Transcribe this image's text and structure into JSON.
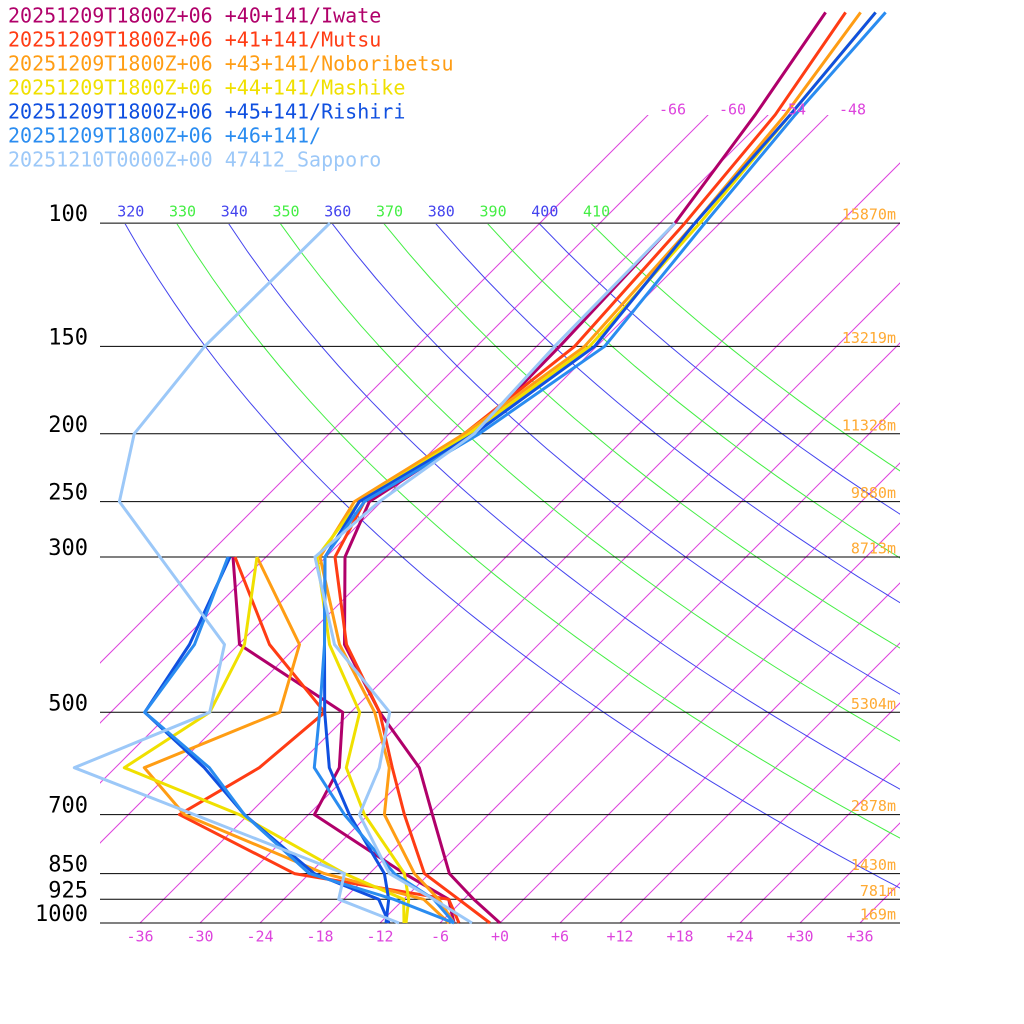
{
  "chart_data": {
    "type": "skewt",
    "levels": [
      1000,
      925,
      850,
      700,
      600,
      500,
      400,
      300,
      250,
      200,
      150,
      100,
      70,
      50
    ],
    "ylim": [
      1000,
      48
    ],
    "yticks": [
      100,
      150,
      200,
      250,
      300,
      500,
      700,
      850,
      925,
      1000
    ],
    "height_labels": [
      "15870m",
      "13219m",
      "11328m",
      "9880m",
      "8713m",
      "5304m",
      "2878m",
      "1430m",
      "781m",
      "169m"
    ],
    "xlim": [
      -40,
      40
    ],
    "xticks": [
      -36,
      -30,
      -24,
      -18,
      -12,
      -6,
      {
        "value": 0,
        "label": "+0"
      },
      {
        "value": 6,
        "label": "+6"
      },
      {
        "value": 12,
        "label": "+12"
      },
      {
        "value": 18,
        "label": "+18"
      },
      {
        "value": 24,
        "label": "+24"
      },
      {
        "value": 30,
        "label": "+30"
      },
      {
        "value": 36,
        "label": "+36"
      }
    ],
    "isotherm_labels": [
      -66,
      -60,
      -54,
      -48
    ],
    "isotherm_color": "#dd44dd",
    "theta_lines": {
      "values": [
        320,
        330,
        340,
        350,
        360,
        370,
        380,
        390,
        400,
        410
      ],
      "colors": [
        "#4444ee",
        "#44ee44",
        "#4444ee",
        "#44ee44",
        "#4444ee",
        "#44ee44",
        "#4444ee",
        "#44ee44",
        "#4444ee",
        "#44ee44"
      ]
    },
    "height_color": "#ffaa33",
    "series": [
      {
        "name": "20251209T1800Z+06 +40+141/Iwate",
        "color": "#b0006a",
        "temperature": [
          0,
          -5,
          -10,
          -17.6,
          -23.6,
          -33.1,
          -43.4,
          -52.1,
          -55.2,
          -51.5,
          -51.7,
          -52.5,
          -55.3,
          -58.5
        ],
        "dewpoint": [
          -4.6,
          -7.5,
          -14.5,
          -29.4,
          -31.6,
          -36.8,
          -53.9,
          -63.3,
          null,
          null,
          null,
          null,
          null,
          null
        ]
      },
      {
        "name": "20251209T1800Z+06 +41+141/Mutsu",
        "color": "#ff3c14",
        "temperature": [
          -1,
          -6.5,
          -12.5,
          -20.4,
          -26.3,
          -33.1,
          -43.2,
          -53.1,
          -55.7,
          -52.5,
          -50.2,
          -51.5,
          -53.3,
          -56.5
        ],
        "dewpoint": [
          -4.1,
          -7.5,
          -25.5,
          -42.9,
          -39.6,
          -38.6,
          -50.9,
          -63.1,
          null,
          null,
          null,
          null,
          null,
          null
        ]
      },
      {
        "name": "20251209T1800Z+06 +43+141/Noboribetsu",
        "color": "#ff9d14",
        "temperature": [
          -4.6,
          -8.5,
          -13.5,
          -22.4,
          -26.6,
          -33.6,
          -43.9,
          -54.6,
          -56.7,
          -52.5,
          -49.2,
          -50.5,
          -52.3,
          -55
        ],
        "dewpoint": [
          -5.1,
          -10,
          -22.5,
          -42.4,
          -51.1,
          -43.1,
          -47.9,
          -60.9,
          null,
          null,
          null,
          null,
          null,
          null
        ]
      },
      {
        "name": "20251209T1800Z+06 +44+141/Mashike",
        "color": "#f0e000",
        "temperature": [
          -9.4,
          -11.5,
          -14.5,
          -24.4,
          -30.9,
          -35.1,
          -44.9,
          -54.9,
          -56.2,
          -52,
          -48.7,
          -50,
          -51.8,
          -53.5
        ],
        "dewpoint": [
          -9.6,
          -12,
          -20.5,
          -36.9,
          -53.1,
          -50.1,
          -53.4,
          -60.9,
          null,
          null,
          null,
          null,
          null,
          null
        ]
      },
      {
        "name": "20251209T1800Z+06 +45+141/Rishiri",
        "color": "#1050e0",
        "temperature": [
          -11.4,
          -13.5,
          -16.5,
          -25.9,
          -32.6,
          -38.6,
          -45.4,
          -54.1,
          -56.2,
          -51.5,
          -48.2,
          -50.5,
          -51.8,
          -53.5
        ],
        "dewpoint": [
          -11.1,
          -14.5,
          -23.5,
          -36.4,
          -45.1,
          -56.6,
          -58.9,
          -63.6,
          null,
          null,
          null,
          null,
          null,
          null
        ]
      },
      {
        "name": "20251209T1800Z+06 +46+141/",
        "color": "#2a8cf0",
        "temperature": [
          -4.6,
          -9,
          -15.5,
          -26.4,
          -34.1,
          -39.1,
          -45.4,
          -54.1,
          -55.7,
          -51,
          -47.2,
          -49.5,
          -51.3,
          -52.5
        ],
        "dewpoint": [
          -4.6,
          -13,
          -24,
          -36.4,
          -44.6,
          -56.6,
          -58.4,
          -63.8,
          null,
          null,
          null,
          null,
          null,
          null
        ]
      },
      {
        "name": "20251210T0000Z+00 47412_Sapporo",
        "color": "#9cc8f8",
        "temperature": [
          -2.8,
          -9,
          -16,
          -24.9,
          -27.6,
          -32.1,
          -44.4,
          -55.1,
          -54.2,
          -51.5,
          -52.2,
          -52.5,
          null,
          null
        ],
        "dewpoint": [
          -10.1,
          -18.5,
          -20.5,
          -41.4,
          -58.1,
          -50.1,
          -55.4,
          -70.6,
          -80.2,
          -85.5,
          -87.2,
          -87,
          null,
          null
        ]
      }
    ]
  }
}
